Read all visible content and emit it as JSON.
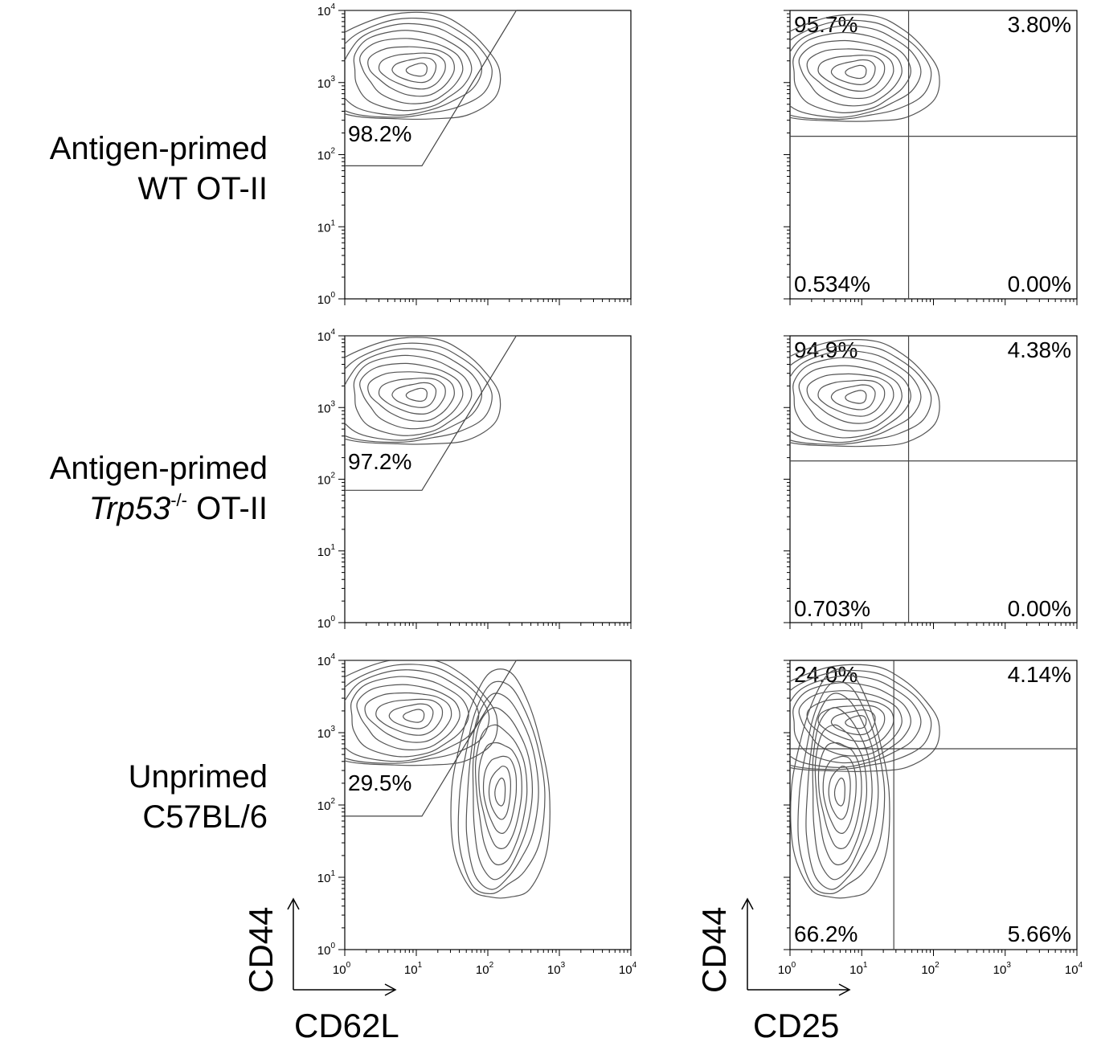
{
  "rows": [
    {
      "label_line1": "Antigen-primed",
      "label_line2": "WT OT-II",
      "gate_pct": "98.2%",
      "quad": {
        "ul": "95.7%",
        "ur": "3.80%",
        "ll": "0.534%",
        "lr": "0.00%"
      }
    },
    {
      "label_line1": "Antigen-primed",
      "label_line2_italic": "Trp53",
      "label_line2_sup": "-/-",
      "label_line2_rest": " OT-II",
      "gate_pct": "97.2%",
      "quad": {
        "ul": "94.9%",
        "ur": "4.38%",
        "ll": "0.703%",
        "lr": "0.00%"
      }
    },
    {
      "label_line1": "Unprimed",
      "label_line2": "C57BL/6",
      "gate_pct": "29.5%",
      "quad": {
        "ul": "24.0%",
        "ur": "4.14%",
        "ll": "66.2%",
        "lr": "5.66%"
      }
    }
  ],
  "axes": {
    "left_x": "CD62L",
    "left_y": "CD44",
    "right_x": "CD25",
    "right_y": "CD44"
  },
  "chart_data": [
    {
      "type": "contour",
      "panel": "CD44 vs CD62L",
      "x_scale": "log",
      "y_scale": "log",
      "xlim": [
        1,
        10000
      ],
      "ylim": [
        1,
        10000
      ],
      "x_ticks": [
        "10^0",
        "10^1",
        "10^2",
        "10^3",
        "10^4"
      ],
      "y_ticks": [
        "10^0",
        "10^1",
        "10^2",
        "10^3",
        "10^4"
      ],
      "gate_polygon": [
        [
          1,
          70
        ],
        [
          12,
          70
        ],
        [
          250,
          10000
        ],
        [
          1,
          10000
        ]
      ],
      "samples": [
        {
          "row": 0,
          "gate_percent": 98.2,
          "populations": [
            {
              "x": 11,
              "y": 1500,
              "spread": "medium"
            }
          ]
        },
        {
          "row": 1,
          "gate_percent": 97.2,
          "populations": [
            {
              "x": 11,
              "y": 1500,
              "spread": "medium"
            }
          ]
        },
        {
          "row": 2,
          "gate_percent": 29.5,
          "populations": [
            {
              "x": 10,
              "y": 1700,
              "spread": "medium"
            },
            {
              "x": 150,
              "y": 150,
              "spread": "tall"
            }
          ]
        }
      ]
    },
    {
      "type": "contour",
      "panel": "CD44 vs CD25",
      "x_scale": "log",
      "y_scale": "log",
      "xlim": [
        1,
        10000
      ],
      "ylim": [
        1,
        10000
      ],
      "x_ticks": [
        "10^0",
        "10^1",
        "10^2",
        "10^3",
        "10^4"
      ],
      "y_ticks": [],
      "samples": [
        {
          "row": 0,
          "quadrant_x": 45,
          "quadrant_y": 180,
          "quadrants": {
            "ul": 95.7,
            "ur": 3.8,
            "ll": 0.534,
            "lr": 0.0
          }
        },
        {
          "row": 1,
          "quadrant_x": 45,
          "quadrant_y": 180,
          "quadrants": {
            "ul": 94.9,
            "ur": 4.38,
            "ll": 0.703,
            "lr": 0.0
          }
        },
        {
          "row": 2,
          "quadrant_x": 28,
          "quadrant_y": 600,
          "quadrants": {
            "ul": 24.0,
            "ur": 4.14,
            "ll": 66.2,
            "lr": 5.66
          }
        }
      ]
    }
  ]
}
